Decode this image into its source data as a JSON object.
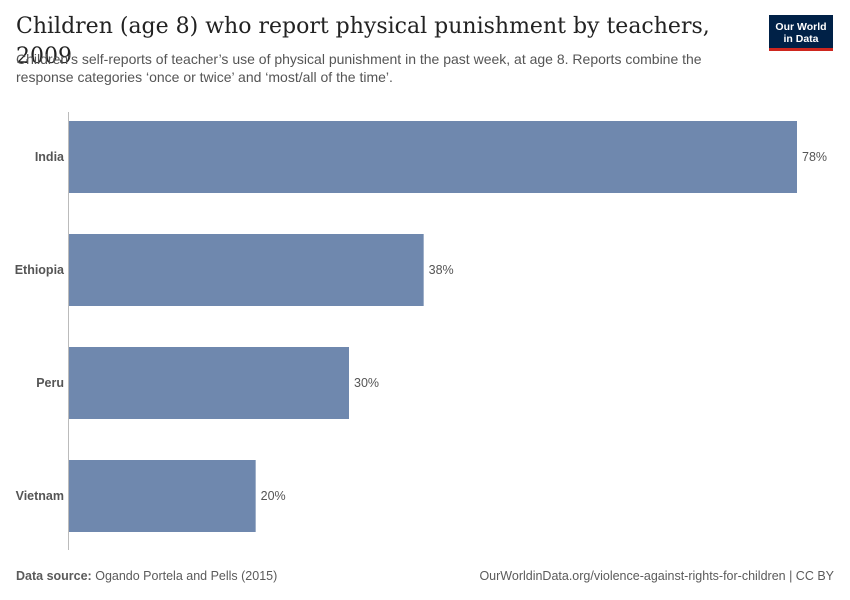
{
  "header": {
    "title": "Children (age 8) who report physical punishment by teachers, 2009",
    "subtitle": "Children’s self-reports of teacher’s use of physical punishment in the past week, at age 8. Reports combine the response categories ‘once or twice’ and ‘most/all of the time’."
  },
  "logo": {
    "line1": "Our World",
    "line2": "in Data"
  },
  "chart_data": {
    "type": "bar",
    "orientation": "horizontal",
    "categories": [
      "India",
      "Ethiopia",
      "Peru",
      "Vietnam"
    ],
    "values": [
      78,
      38,
      30,
      20
    ],
    "value_labels": [
      "78%",
      "38%",
      "30%",
      "20%"
    ],
    "unit": "%",
    "xlim": [
      0,
      78
    ],
    "bar_color": "#6f88ae",
    "grid": false
  },
  "footer": {
    "source_label": "Data source:",
    "source_text": "Ogando Portela and Pells (2015)",
    "url_text": "OurWorldinData.org/violence-against-rights-for-children | CC BY"
  }
}
